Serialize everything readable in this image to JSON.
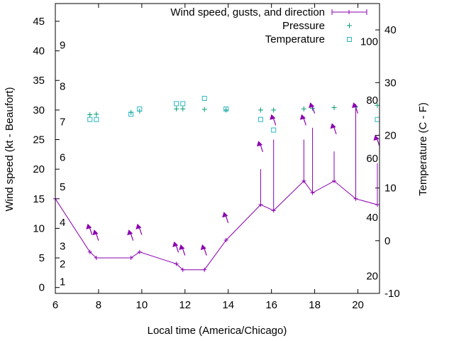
{
  "chart_data": {
    "type": "line",
    "xlabel": "Local time (America/Chicago)",
    "ylabel": "Wind speed (kt - Beaufort)",
    "y2label": "Temperature (C - F)",
    "xlim": [
      6,
      21
    ],
    "ylim": [
      -1,
      48
    ],
    "y2lim": [
      -10,
      45
    ],
    "x_ticks": [
      "6",
      "8",
      "10",
      "12",
      "14",
      "16",
      "18",
      "20"
    ],
    "y_ticks": [
      "0",
      "5",
      "10",
      "15",
      "20",
      "25",
      "30",
      "35",
      "40",
      "45"
    ],
    "y2_ticks": [
      "-10",
      "0",
      "10",
      "20",
      "30",
      "40"
    ],
    "beaufort_labels": [
      {
        "label": "1",
        "y": 1
      },
      {
        "label": "2",
        "y": 4
      },
      {
        "label": "3",
        "y": 7
      },
      {
        "label": "4",
        "y": 11
      },
      {
        "label": "5",
        "y": 17
      },
      {
        "label": "6",
        "y": 22
      },
      {
        "label": "7",
        "y": 28
      },
      {
        "label": "8",
        "y": 34
      },
      {
        "label": "9",
        "y": 41
      }
    ],
    "fahrenheit_labels": [
      {
        "label": "20",
        "temp": -6.7
      },
      {
        "label": "40",
        "temp": 4.4
      },
      {
        "label": "60",
        "temp": 15.6
      },
      {
        "label": "80",
        "temp": 26.7
      },
      {
        "label": "100",
        "temp": 37.8
      }
    ],
    "legend": [
      {
        "key": "wind",
        "label": "Wind speed, gusts, and direction"
      },
      {
        "key": "pressure",
        "label": "Pressure"
      },
      {
        "key": "temperature",
        "label": "Temperature"
      }
    ],
    "legend_position": "top-right",
    "series": [
      {
        "key": "wind",
        "color": "#8b00b0",
        "points": [
          {
            "x": 6.0,
            "y": 15,
            "gust": null
          },
          {
            "x": 7.6,
            "y": 6,
            "gust": null
          },
          {
            "x": 7.9,
            "y": 5,
            "gust": null
          },
          {
            "x": 9.5,
            "y": 5,
            "gust": null
          },
          {
            "x": 9.9,
            "y": 6,
            "gust": null
          },
          {
            "x": 11.6,
            "y": 4,
            "gust": null
          },
          {
            "x": 11.9,
            "y": 3,
            "gust": null
          },
          {
            "x": 12.9,
            "y": 3,
            "gust": null
          },
          {
            "x": 13.9,
            "y": 8,
            "gust": null
          },
          {
            "x": 15.5,
            "y": 14,
            "gust": 20
          },
          {
            "x": 16.1,
            "y": 13,
            "gust": 25
          },
          {
            "x": 17.5,
            "y": 18,
            "gust": 25
          },
          {
            "x": 17.9,
            "y": 16,
            "gust": 27
          },
          {
            "x": 18.9,
            "y": 18,
            "gust": 23
          },
          {
            "x": 19.9,
            "y": 15,
            "gust": 31
          },
          {
            "x": 20.9,
            "y": 14,
            "gust": 21
          }
        ],
        "direction_arrows": [
          {
            "x": 7.6,
            "y": 10
          },
          {
            "x": 7.9,
            "y": 9
          },
          {
            "x": 9.5,
            "y": 9
          },
          {
            "x": 9.9,
            "y": 10
          },
          {
            "x": 11.6,
            "y": 7
          },
          {
            "x": 11.9,
            "y": 6.5
          },
          {
            "x": 12.9,
            "y": 6.5
          },
          {
            "x": 13.9,
            "y": 12
          },
          {
            "x": 15.5,
            "y": 24
          },
          {
            "x": 16.1,
            "y": 28.5
          },
          {
            "x": 17.5,
            "y": 28.5
          },
          {
            "x": 17.9,
            "y": 30.5
          },
          {
            "x": 18.9,
            "y": 27
          },
          {
            "x": 19.9,
            "y": 30.5
          },
          {
            "x": 20.9,
            "y": 25
          }
        ]
      },
      {
        "key": "pressure",
        "color": "#009e73",
        "points": [
          {
            "x": 7.6,
            "y": 29.2
          },
          {
            "x": 7.9,
            "y": 29.3
          },
          {
            "x": 9.5,
            "y": 29.6
          },
          {
            "x": 9.9,
            "y": 29.8
          },
          {
            "x": 11.6,
            "y": 30.2
          },
          {
            "x": 11.9,
            "y": 30.2
          },
          {
            "x": 12.9,
            "y": 30.1
          },
          {
            "x": 13.9,
            "y": 30.0
          },
          {
            "x": 15.5,
            "y": 30.0
          },
          {
            "x": 16.1,
            "y": 30.0
          },
          {
            "x": 17.5,
            "y": 30.2
          },
          {
            "x": 17.9,
            "y": 30.3
          },
          {
            "x": 18.9,
            "y": 30.4
          },
          {
            "x": 19.9,
            "y": 30.5
          },
          {
            "x": 20.9,
            "y": 30.8
          }
        ]
      },
      {
        "key": "temperature",
        "color": "#2bb5c8",
        "points": [
          {
            "x": 7.6,
            "temp": 23.0
          },
          {
            "x": 7.9,
            "temp": 23.0
          },
          {
            "x": 9.5,
            "temp": 24.0
          },
          {
            "x": 9.9,
            "temp": 25.0
          },
          {
            "x": 11.6,
            "temp": 26.0
          },
          {
            "x": 11.9,
            "temp": 26.0
          },
          {
            "x": 12.9,
            "temp": 27.0
          },
          {
            "x": 13.9,
            "temp": 25.0
          },
          {
            "x": 15.5,
            "temp": 23.0
          },
          {
            "x": 16.1,
            "temp": 21.0
          },
          {
            "x": 20.9,
            "temp": 23.0
          }
        ]
      }
    ]
  }
}
